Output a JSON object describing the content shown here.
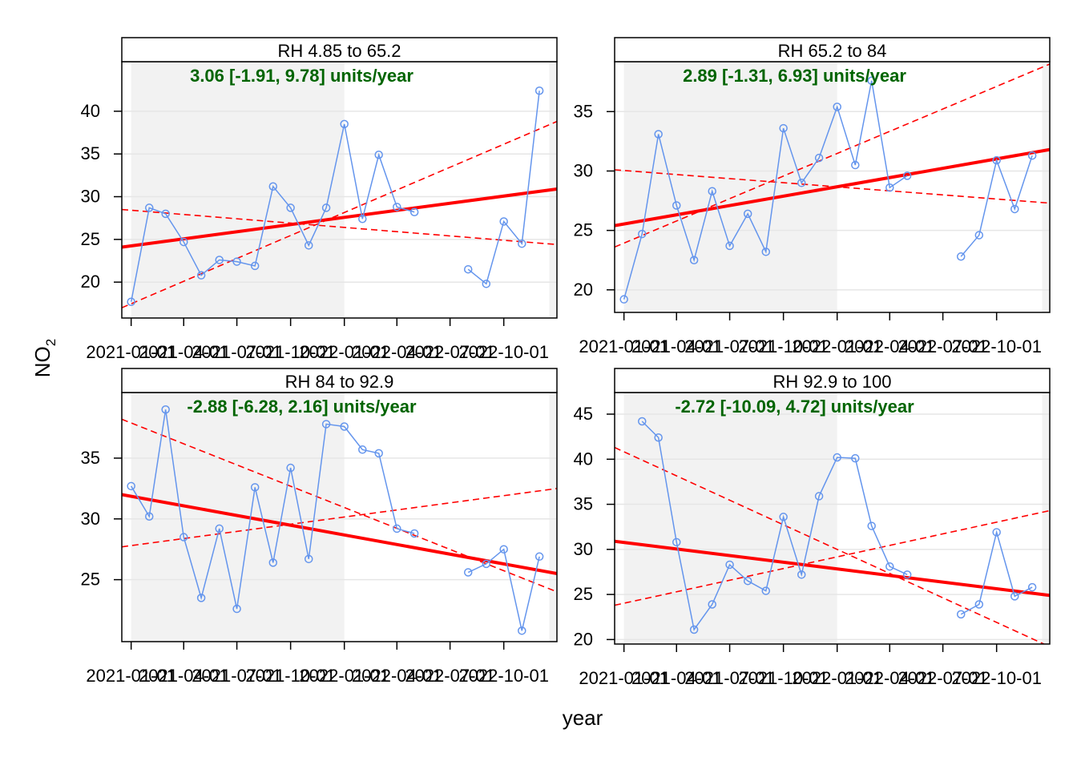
{
  "figure": {
    "xlabel": "year",
    "ylabel": "NO",
    "ylabel_subscript": "2"
  },
  "colors": {
    "observed": "#6495ED",
    "trend": "#FF0000",
    "trend_text": "#006400",
    "shade": "#F2F2F2",
    "grid": "#E6E6E6"
  },
  "chart_data": [
    {
      "type": "line",
      "panel": "RH 4.85 to 65.2",
      "strip": "RH 4.85 to 65.2",
      "trend_label": "3.06 [-1.91, 9.78] units/year",
      "x_ticks": [
        "2021-01-01",
        "2021-04-01",
        "2021-07-01",
        "2021-10-01",
        "2022-01-01",
        "2022-04-01",
        "2022-07-01",
        "2022-10-01"
      ],
      "y_ticks": [
        20,
        25,
        30,
        35,
        40
      ],
      "ylim": [
        15.8,
        45.8
      ],
      "series": [
        {
          "x": [
            "2021-01-01",
            "2021-02-01",
            "2021-03-01",
            "2021-04-01",
            "2021-05-01",
            "2021-06-01",
            "2021-07-01",
            "2021-08-01",
            "2021-09-01",
            "2021-10-01",
            "2021-11-01",
            "2021-12-01",
            "2022-01-01",
            "2022-02-01",
            "2022-03-01",
            "2022-04-01",
            "2022-05-01",
            "2022-06-01",
            "2022-07-01",
            "2022-08-01",
            "2022-09-01",
            "2022-10-01",
            "2022-11-01",
            "2022-12-01"
          ],
          "values": [
            17.7,
            28.7,
            28.0,
            24.7,
            20.8,
            22.6,
            22.4,
            21.9,
            31.2,
            28.7,
            24.3,
            28.7,
            38.5,
            27.4,
            34.9,
            28.8,
            28.2,
            null,
            null,
            21.5,
            19.8,
            27.1,
            24.5,
            42.4
          ]
        }
      ],
      "trend": {
        "start": 24.1,
        "end": 30.9
      },
      "ci_lines": [
        {
          "start": 28.5,
          "end": 24.4
        },
        {
          "start": 17.0,
          "end": 38.8
        }
      ]
    },
    {
      "type": "line",
      "panel": "RH 65.2 to 84",
      "strip": "RH 65.2 to 84",
      "trend_label": "2.89 [-1.31, 6.93] units/year",
      "x_ticks": [
        "2021-01-01",
        "2021-04-01",
        "2021-07-01",
        "2021-10-01",
        "2022-01-01",
        "2022-04-01",
        "2022-07-01",
        "2022-10-01"
      ],
      "y_ticks": [
        20,
        25,
        30,
        35
      ],
      "ylim": [
        18.1,
        39.2
      ],
      "series": [
        {
          "x": [
            "2021-01-01",
            "2021-02-01",
            "2021-03-01",
            "2021-04-01",
            "2021-05-01",
            "2021-06-01",
            "2021-07-01",
            "2021-08-01",
            "2021-09-01",
            "2021-10-01",
            "2021-11-01",
            "2021-12-01",
            "2022-01-01",
            "2022-02-01",
            "2022-03-01",
            "2022-04-01",
            "2022-05-01",
            "2022-06-01",
            "2022-07-01",
            "2022-08-01",
            "2022-09-01",
            "2022-10-01",
            "2022-11-01",
            "2022-12-01"
          ],
          "values": [
            19.2,
            24.7,
            33.1,
            27.1,
            22.5,
            28.3,
            23.7,
            26.4,
            23.2,
            33.6,
            29.0,
            31.1,
            35.4,
            30.5,
            37.6,
            28.6,
            29.6,
            null,
            null,
            22.8,
            24.6,
            30.9,
            26.8,
            31.3
          ]
        }
      ],
      "trend": {
        "start": 25.4,
        "end": 31.8
      },
      "ci_lines": [
        {
          "start": 30.1,
          "end": 27.3
        },
        {
          "start": 23.6,
          "end": 39.0
        }
      ]
    },
    {
      "type": "line",
      "panel": "RH 84 to 92.9",
      "strip": "RH 84 to 92.9",
      "trend_label": "-2.88 [-6.28, 2.16] units/year",
      "x_ticks": [
        "2021-01-01",
        "2021-04-01",
        "2021-07-01",
        "2021-10-01",
        "2022-01-01",
        "2022-04-01",
        "2022-07-01",
        "2022-10-01"
      ],
      "y_ticks": [
        25,
        30,
        35
      ],
      "ylim": [
        19.9,
        40.4
      ],
      "series": [
        {
          "x": [
            "2021-01-01",
            "2021-02-01",
            "2021-03-01",
            "2021-04-01",
            "2021-05-01",
            "2021-06-01",
            "2021-07-01",
            "2021-08-01",
            "2021-09-01",
            "2021-10-01",
            "2021-11-01",
            "2021-12-01",
            "2022-01-01",
            "2022-02-01",
            "2022-03-01",
            "2022-04-01",
            "2022-05-01",
            "2022-06-01",
            "2022-07-01",
            "2022-08-01",
            "2022-09-01",
            "2022-10-01",
            "2022-11-01",
            "2022-12-01"
          ],
          "values": [
            32.7,
            30.2,
            39.0,
            28.5,
            23.5,
            29.2,
            22.6,
            32.6,
            26.4,
            34.2,
            26.7,
            37.8,
            37.6,
            35.7,
            35.4,
            29.2,
            28.8,
            null,
            null,
            25.6,
            26.3,
            27.5,
            20.8,
            26.9
          ]
        }
      ],
      "trend": {
        "start": 32.0,
        "end": 25.5
      },
      "ci_lines": [
        {
          "start": 38.2,
          "end": 24.0
        },
        {
          "start": 27.7,
          "end": 32.5
        }
      ]
    },
    {
      "type": "line",
      "panel": "RH 92.9 to 100",
      "strip": "RH 92.9 to 100",
      "trend_label": "-2.72 [-10.09, 4.72] units/year",
      "x_ticks": [
        "2021-01-01",
        "2021-04-01",
        "2021-07-01",
        "2021-10-01",
        "2022-01-01",
        "2022-04-01",
        "2022-07-01",
        "2022-10-01"
      ],
      "y_ticks": [
        20,
        25,
        30,
        35,
        40,
        45
      ],
      "ylim": [
        19.5,
        47.4
      ],
      "series": [
        {
          "x": [
            "2021-01-01",
            "2021-02-01",
            "2021-03-01",
            "2021-04-01",
            "2021-05-01",
            "2021-06-01",
            "2021-07-01",
            "2021-08-01",
            "2021-09-01",
            "2021-10-01",
            "2021-11-01",
            "2021-12-01",
            "2022-01-01",
            "2022-02-01",
            "2022-03-01",
            "2022-04-01",
            "2022-05-01",
            "2022-06-01",
            "2022-07-01",
            "2022-08-01",
            "2022-09-01",
            "2022-10-01",
            "2022-11-01",
            "2022-12-01"
          ],
          "values": [
            null,
            44.2,
            42.4,
            30.8,
            21.1,
            23.9,
            28.3,
            26.5,
            25.4,
            33.6,
            27.2,
            35.9,
            40.2,
            40.1,
            32.6,
            28.1,
            27.2,
            null,
            null,
            22.8,
            23.9,
            31.9,
            24.8,
            25.8
          ]
        }
      ],
      "trend": {
        "start": 30.9,
        "end": 24.9
      },
      "ci_lines": [
        {
          "start": 41.3,
          "end": 19.2
        },
        {
          "start": 23.8,
          "end": 34.3
        }
      ]
    }
  ]
}
